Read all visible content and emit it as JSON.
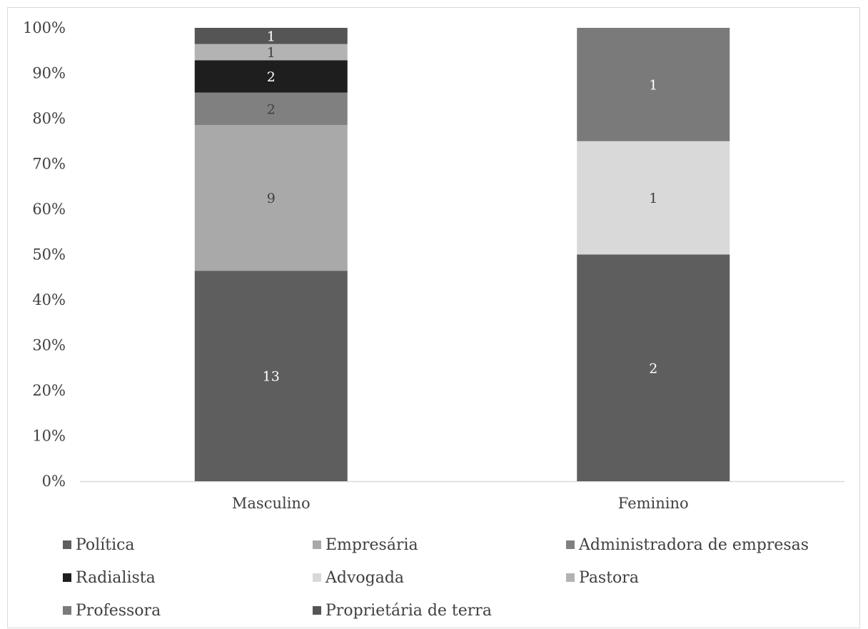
{
  "chart_data": {
    "type": "bar",
    "stacked": "percent",
    "categories": [
      "Masculino",
      "Feminino"
    ],
    "series": [
      {
        "name": "Política",
        "values": [
          13,
          2
        ],
        "color": "#5e5e5e",
        "label_color": "#ffffff"
      },
      {
        "name": "Empresária",
        "values": [
          9,
          0
        ],
        "color": "#a9a9a9",
        "label_color": "#404040"
      },
      {
        "name": "Administradora de empresas",
        "values": [
          2,
          0
        ],
        "color": "#808080",
        "label_color": "#404040"
      },
      {
        "name": "Radialista",
        "values": [
          2,
          0
        ],
        "color": "#1e1e1e",
        "label_color": "#ffffff"
      },
      {
        "name": "Advogada",
        "values": [
          0,
          1
        ],
        "color": "#d9d9d9",
        "label_color": "#404040"
      },
      {
        "name": "Pastora",
        "values": [
          1,
          0
        ],
        "color": "#b3b3b3",
        "label_color": "#404040"
      },
      {
        "name": "Professora",
        "values": [
          0,
          1
        ],
        "color": "#7a7a7a",
        "label_color": "#ffffff"
      },
      {
        "name": "Proprietária de terra",
        "values": [
          1,
          0
        ],
        "color": "#555555",
        "label_color": "#ffffff"
      }
    ],
    "ylim": [
      0,
      100
    ],
    "yticks": [
      "0%",
      "10%",
      "20%",
      "30%",
      "40%",
      "50%",
      "60%",
      "70%",
      "80%",
      "90%",
      "100%"
    ],
    "grid": false,
    "legend_position": "bottom"
  }
}
